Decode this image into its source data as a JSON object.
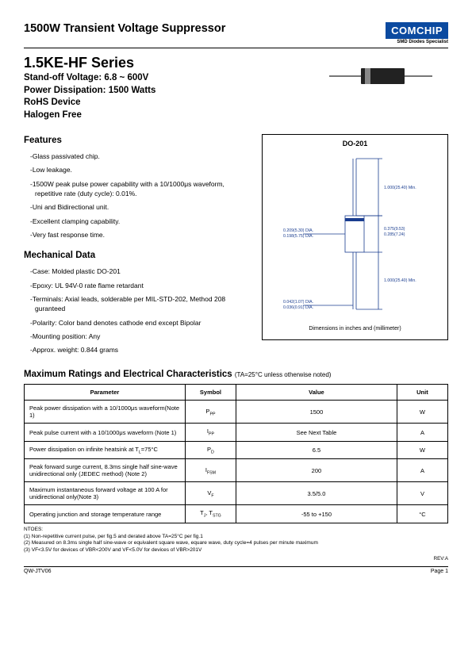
{
  "header": {
    "title": "1500W Transient Voltage Suppressor",
    "logo_text": "COMCHIP",
    "logo_sub": "SMD Diodes Specialist"
  },
  "series": {
    "name": "1.5KE-HF Series",
    "lines": [
      "Stand-off Voltage: 6.8 ~ 600V",
      "Power Dissipation: 1500 Watts",
      "RoHS Device",
      "Halogen Free"
    ]
  },
  "features": {
    "heading": "Features",
    "items": [
      "-Glass passivated chip.",
      "-Low leakage.",
      "-1500W peak pulse power capability with a 10/1000μs waveform, repetitive rate (duty cycle): 0.01%.",
      "-Uni and Bidirectional unit.",
      "-Excellent clamping capability.",
      "-Very fast response time."
    ]
  },
  "mech": {
    "heading": "Mechanical Data",
    "items": [
      "-Case: Molded plastic DO-201",
      "-Epoxy: UL 94V-0 rate flame retardant",
      "-Terminals: Axial leads, solderable per MIL-STD-202, Method 208 guranteed",
      "-Polarity: Color band denotes cathode end except Bipolar",
      "-Mounting position: Any",
      "-Approx. weight: 0.844 grams"
    ]
  },
  "package": {
    "title": "DO-201",
    "dims": {
      "lead_len_top": "1.000(25.40) Min.",
      "body_len": "0.375(9.53)",
      "body_len2": "0.285(7.24)",
      "body_dia": "0.209(5.30) DIA.",
      "body_dia2": "0.198(5.75) DIA.",
      "lead_len_bot": "1.000(25.40) Min.",
      "lead_dia": "0.042(1.07) DIA.",
      "lead_dia2": "0.036(0.91) DIA."
    },
    "note": "Dimensions in inches and (millimeter)"
  },
  "ratings": {
    "heading": "Maximum Ratings and Electrical Characteristics",
    "sub": "(TA=25°C unless otherwise noted)",
    "columns": [
      "Parameter",
      "Symbol",
      "Value",
      "Unit"
    ],
    "rows": [
      {
        "p": "Peak power dissipation with a 10/1000μs waveform(Note 1)",
        "s": "P<sub>PP</sub>",
        "v": "1500",
        "u": "W"
      },
      {
        "p": "Peak pulse current  with a 10/1000μs waveform (Note 1)",
        "s": "I<sub>PP</sub>",
        "v": "See Next Table",
        "u": "A"
      },
      {
        "p": "Power dissipation on infinite heatsink at T<sub>L</sub>=75°C",
        "s": "P<sub>D</sub>",
        "v": "6.5",
        "u": "W"
      },
      {
        "p": "Peak forward surge current, 8.3ms single half sine-wave unidirectional only (JEDEC method) (Note 2)",
        "s": "I<sub>FSM</sub>",
        "v": "200",
        "u": "A"
      },
      {
        "p": "Maximum instantaneous forward voltage at 100 A for unidirectional only(Note 3)",
        "s": "V<sub>F</sub>",
        "v": "3.5/5.0",
        "u": "V"
      },
      {
        "p": "Operating junction and storage temperature range",
        "s": "T<sub>J</sub>, T<sub>STG</sub>",
        "v": "-55 to +150",
        "u": "°C"
      }
    ]
  },
  "notes": {
    "heading": "NTOES:",
    "lines": [
      "(1) Non-repetitive current pulse, per fig.5 and derated above TA=25°C per fig.1",
      "(2) Measured on 8.3ms single half sine-wave or equivalent square wave, equare wave, duty cycle=4 pulses per minute maximum",
      "(3) VF<3.5V for devices of VBR<200V and VF<5.0V for devices of VBR>201V"
    ]
  },
  "footer": {
    "left": "QW-JTV06",
    "right": "Page 1",
    "rev": "REV:A"
  },
  "colors": {
    "logo_bg": "#0b4aa0",
    "pkg_line": "#1a3d8f"
  }
}
